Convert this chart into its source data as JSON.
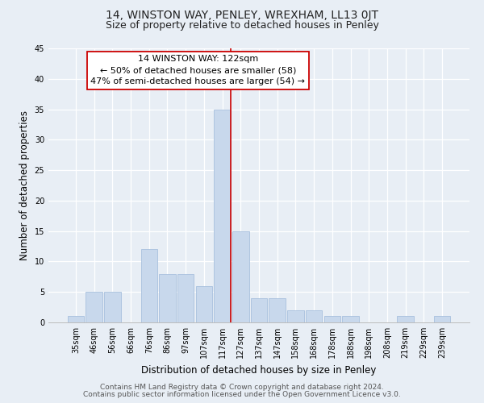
{
  "title": "14, WINSTON WAY, PENLEY, WREXHAM, LL13 0JT",
  "subtitle": "Size of property relative to detached houses in Penley",
  "xlabel": "Distribution of detached houses by size in Penley",
  "ylabel": "Number of detached properties",
  "bin_labels": [
    "35sqm",
    "46sqm",
    "56sqm",
    "66sqm",
    "76sqm",
    "86sqm",
    "97sqm",
    "107sqm",
    "117sqm",
    "127sqm",
    "137sqm",
    "147sqm",
    "158sqm",
    "168sqm",
    "178sqm",
    "188sqm",
    "198sqm",
    "208sqm",
    "219sqm",
    "229sqm",
    "239sqm"
  ],
  "bar_values": [
    1,
    5,
    5,
    0,
    12,
    8,
    8,
    6,
    35,
    15,
    4,
    4,
    2,
    2,
    1,
    1,
    0,
    0,
    1,
    0,
    1
  ],
  "bar_color": "#c8d8ec",
  "bar_edge_color": "#a8c0de",
  "annotation_title": "14 WINSTON WAY: 122sqm",
  "annotation_line1": "← 50% of detached houses are smaller (58)",
  "annotation_line2": "47% of semi-detached houses are larger (54) →",
  "annotation_box_color": "#ffffff",
  "annotation_box_edge": "#cc0000",
  "ref_line_color": "#cc0000",
  "ylim": [
    0,
    45
  ],
  "yticks": [
    0,
    5,
    10,
    15,
    20,
    25,
    30,
    35,
    40,
    45
  ],
  "footer_line1": "Contains HM Land Registry data © Crown copyright and database right 2024.",
  "footer_line2": "Contains public sector information licensed under the Open Government Licence v3.0.",
  "bg_color": "#e8eef5",
  "plot_bg_color": "#e8eef5",
  "title_fontsize": 10,
  "subtitle_fontsize": 9,
  "axis_label_fontsize": 8.5,
  "tick_fontsize": 7,
  "annotation_fontsize": 8,
  "footer_fontsize": 6.5
}
